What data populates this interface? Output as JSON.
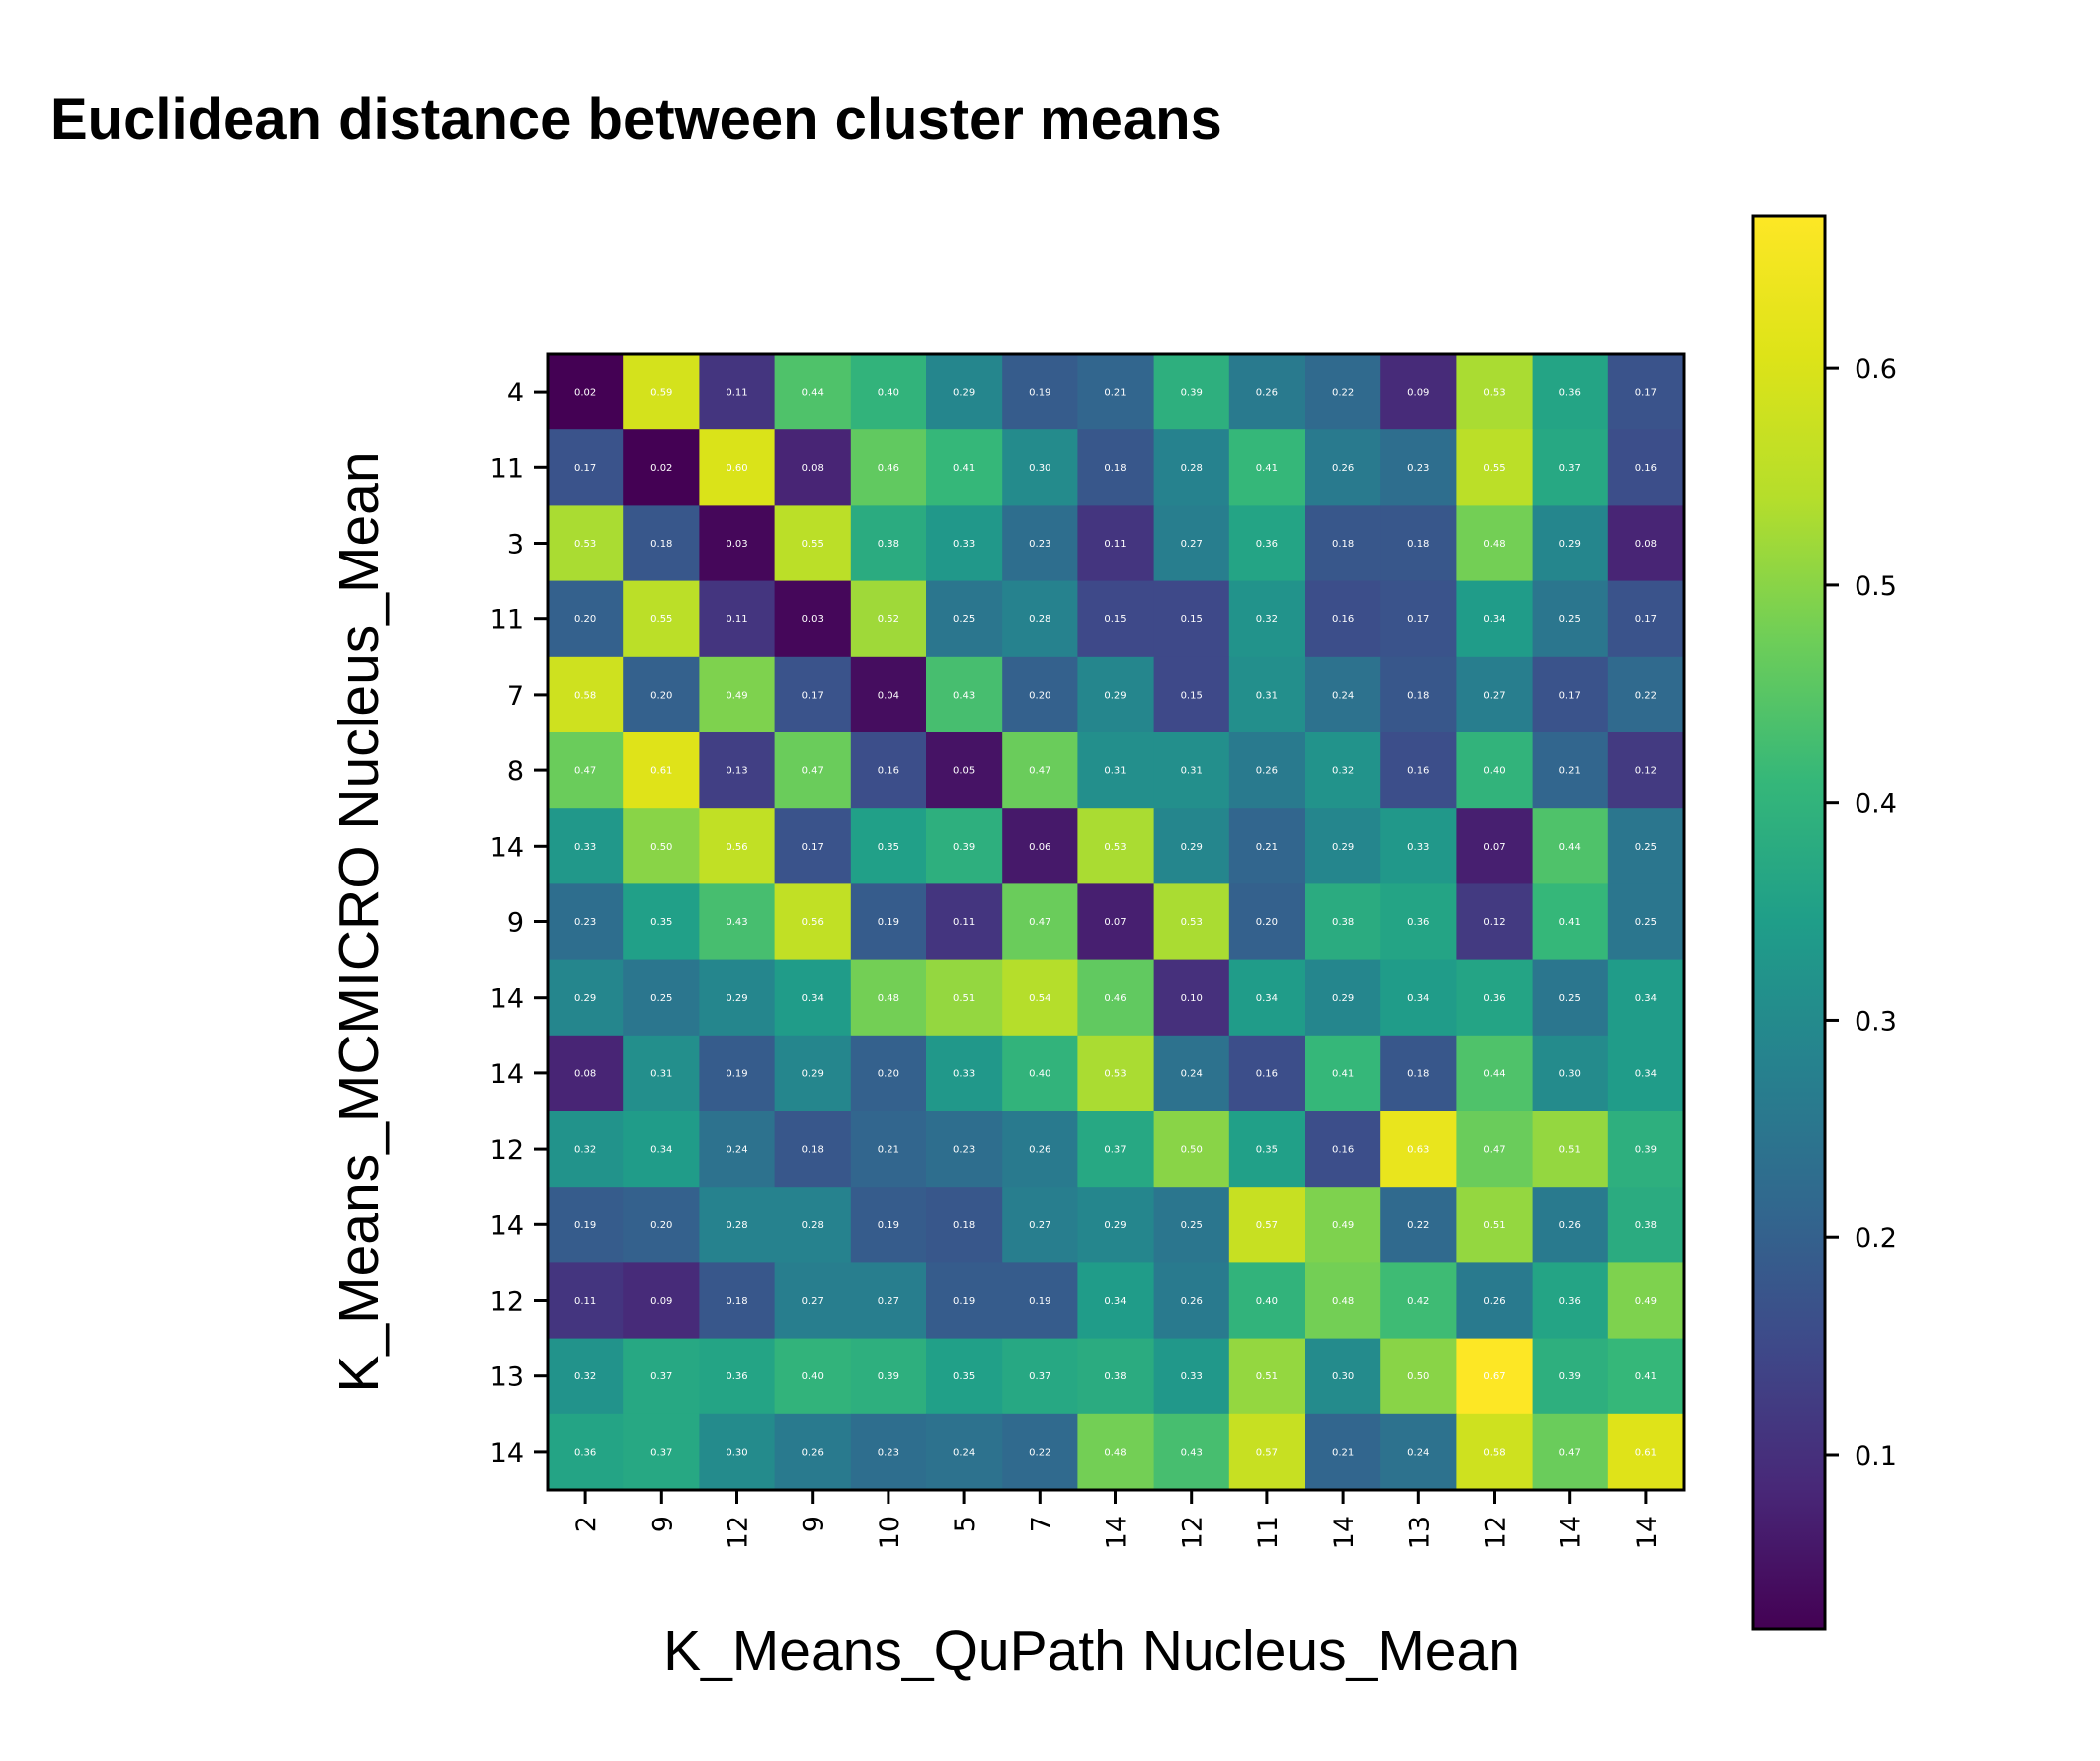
{
  "chart_data": {
    "type": "heatmap",
    "title": "Euclidean distance between cluster means",
    "xlabel": "K_Means_QuPath Nucleus_Mean",
    "ylabel": "K_Means_MCMICRO Nucleus_Mean",
    "x_categories": [
      "2",
      "9",
      "12",
      "9",
      "10",
      "5",
      "7",
      "14",
      "12",
      "11",
      "14",
      "13",
      "12",
      "14",
      "14"
    ],
    "y_categories": [
      "4",
      "11",
      "3",
      "11",
      "7",
      "8",
      "14",
      "9",
      "14",
      "14",
      "12",
      "14",
      "12",
      "13",
      "14"
    ],
    "values": [
      [
        0.02,
        0.59,
        0.11,
        0.44,
        0.4,
        0.29,
        0.19,
        0.21,
        0.39,
        0.26,
        0.22,
        0.09,
        0.53,
        0.36,
        0.17
      ],
      [
        0.17,
        0.02,
        0.6,
        0.08,
        0.46,
        0.41,
        0.3,
        0.18,
        0.28,
        0.41,
        0.26,
        0.23,
        0.55,
        0.37,
        0.16
      ],
      [
        0.53,
        0.18,
        0.03,
        0.55,
        0.38,
        0.33,
        0.23,
        0.11,
        0.27,
        0.36,
        0.18,
        0.18,
        0.48,
        0.29,
        0.08
      ],
      [
        0.2,
        0.55,
        0.11,
        0.03,
        0.52,
        0.25,
        0.28,
        0.15,
        0.15,
        0.32,
        0.16,
        0.17,
        0.34,
        0.25,
        0.17
      ],
      [
        0.58,
        0.2,
        0.49,
        0.17,
        0.04,
        0.43,
        0.2,
        0.29,
        0.15,
        0.31,
        0.24,
        0.18,
        0.27,
        0.17,
        0.22
      ],
      [
        0.47,
        0.61,
        0.13,
        0.47,
        0.16,
        0.05,
        0.47,
        0.31,
        0.31,
        0.26,
        0.32,
        0.16,
        0.4,
        0.21,
        0.12
      ],
      [
        0.33,
        0.5,
        0.56,
        0.17,
        0.35,
        0.39,
        0.06,
        0.53,
        0.29,
        0.21,
        0.29,
        0.33,
        0.07,
        0.44,
        0.25
      ],
      [
        0.23,
        0.35,
        0.43,
        0.56,
        0.19,
        0.11,
        0.47,
        0.07,
        0.53,
        0.2,
        0.38,
        0.36,
        0.12,
        0.41,
        0.25
      ],
      [
        0.29,
        0.25,
        0.29,
        0.34,
        0.48,
        0.51,
        0.54,
        0.46,
        0.1,
        0.34,
        0.29,
        0.34,
        0.36,
        0.25,
        0.34
      ],
      [
        0.08,
        0.31,
        0.19,
        0.29,
        0.2,
        0.33,
        0.4,
        0.53,
        0.24,
        0.16,
        0.41,
        0.18,
        0.44,
        0.3,
        0.34
      ],
      [
        0.32,
        0.34,
        0.24,
        0.18,
        0.21,
        0.23,
        0.26,
        0.37,
        0.5,
        0.35,
        0.16,
        0.63,
        0.47,
        0.51,
        0.39
      ],
      [
        0.19,
        0.2,
        0.28,
        0.28,
        0.19,
        0.18,
        0.27,
        0.29,
        0.25,
        0.57,
        0.49,
        0.22,
        0.51,
        0.26,
        0.38
      ],
      [
        0.11,
        0.09,
        0.18,
        0.27,
        0.27,
        0.19,
        0.19,
        0.34,
        0.26,
        0.4,
        0.48,
        0.42,
        0.26,
        0.36,
        0.49
      ],
      [
        0.32,
        0.37,
        0.36,
        0.4,
        0.39,
        0.35,
        0.37,
        0.38,
        0.33,
        0.51,
        0.3,
        0.5,
        0.67,
        0.39,
        0.41
      ],
      [
        0.36,
        0.37,
        0.3,
        0.26,
        0.23,
        0.24,
        0.22,
        0.48,
        0.43,
        0.57,
        0.21,
        0.24,
        0.58,
        0.47,
        0.61
      ]
    ],
    "colormap": "viridis",
    "colorbar": {
      "min": 0.02,
      "max": 0.67,
      "ticks": [
        0.1,
        0.2,
        0.3,
        0.4,
        0.5,
        0.6
      ],
      "tick_labels": [
        "0.1",
        "0.2",
        "0.3",
        "0.4",
        "0.5",
        "0.6"
      ]
    }
  }
}
